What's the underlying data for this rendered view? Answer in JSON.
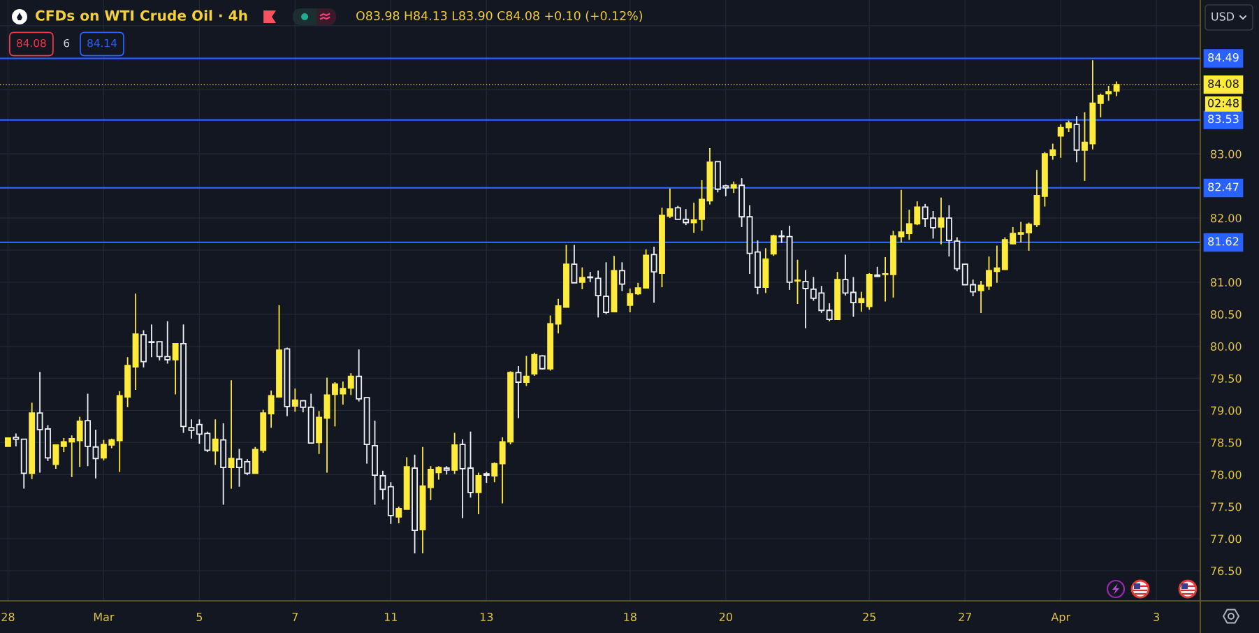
{
  "chart_data": {
    "type": "candlestick",
    "title": "CFDs on WTI Crude Oil · 4h",
    "subtitle": "O83.98 H84.13 L83.90 C84.08 +0.10 (+0.12%)",
    "ylabel": "USD",
    "annotations": [
      "84.08",
      "6",
      "84.14",
      "02:48"
    ],
    "categories": [
      "28",
      null,
      null,
      null,
      null,
      null,
      null,
      null,
      null,
      null,
      null,
      null,
      "Mar",
      null,
      null,
      null,
      null,
      null,
      null,
      null,
      null,
      null,
      null,
      null,
      "5",
      null,
      null,
      null,
      null,
      null,
      null,
      null,
      null,
      null,
      null,
      null,
      "7",
      null,
      null,
      null,
      null,
      null,
      null,
      null,
      null,
      null,
      null,
      null,
      "11",
      null,
      null,
      null,
      null,
      null,
      null,
      null,
      null,
      null,
      null,
      null,
      "13",
      null,
      null,
      null,
      null,
      null,
      null,
      null,
      null,
      null,
      null,
      null,
      null,
      null,
      null,
      null,
      null,
      null,
      "18",
      null,
      null,
      null,
      null,
      null,
      null,
      null,
      null,
      null,
      null,
      null,
      "20",
      null,
      null,
      null,
      null,
      null,
      null,
      null,
      null,
      null,
      null,
      null,
      null,
      null,
      null,
      null,
      null,
      null,
      "25",
      null,
      null,
      null,
      null,
      null,
      null,
      null,
      null,
      null,
      null,
      null,
      "27",
      null,
      null,
      null,
      null,
      null,
      null,
      null,
      null,
      null,
      null,
      null,
      "Apr",
      null,
      null,
      null,
      null,
      null,
      null,
      null,
      null,
      null,
      null,
      null,
      "3",
      null,
      null,
      null,
      null,
      null
    ],
    "ohlc": [
      [
        78.44,
        78.58,
        78.44,
        78.57
      ],
      [
        78.58,
        78.64,
        78.44,
        78.55
      ],
      [
        78.55,
        78.55,
        77.78,
        78.02
      ],
      [
        78.02,
        79.12,
        77.93,
        78.96
      ],
      [
        78.96,
        79.6,
        78.03,
        78.7
      ],
      [
        78.71,
        78.77,
        78.21,
        78.26
      ],
      [
        78.16,
        78.47,
        78.09,
        78.46
      ],
      [
        78.44,
        78.57,
        78.35,
        78.51
      ],
      [
        78.51,
        78.61,
        77.96,
        78.56
      ],
      [
        78.53,
        78.9,
        78.12,
        78.83
      ],
      [
        78.84,
        79.26,
        78.13,
        78.44
      ],
      [
        78.43,
        78.7,
        77.94,
        78.25
      ],
      [
        78.26,
        78.54,
        78.22,
        78.47
      ],
      [
        78.46,
        78.56,
        78.41,
        78.54
      ],
      [
        78.53,
        79.3,
        78.04,
        79.23
      ],
      [
        79.21,
        79.83,
        79.05,
        79.7
      ],
      [
        79.68,
        80.82,
        79.32,
        80.19
      ],
      [
        80.18,
        80.25,
        79.67,
        79.76
      ],
      [
        80.07,
        80.34,
        79.83,
        80.06
      ],
      [
        80.07,
        80.07,
        79.78,
        79.84
      ],
      [
        79.84,
        80.39,
        79.73,
        79.79
      ],
      [
        79.79,
        80.04,
        79.25,
        80.04
      ],
      [
        80.04,
        80.34,
        78.65,
        78.75
      ],
      [
        78.73,
        78.86,
        78.56,
        78.69
      ],
      [
        78.78,
        78.86,
        78.48,
        78.63
      ],
      [
        78.64,
        78.67,
        78.35,
        78.38
      ],
      [
        78.37,
        78.86,
        78.15,
        78.55
      ],
      [
        78.54,
        78.8,
        77.53,
        78.11
      ],
      [
        78.11,
        79.47,
        77.78,
        78.25
      ],
      [
        78.24,
        78.4,
        77.81,
        78.11
      ],
      [
        78.2,
        78.24,
        77.99,
        78.02
      ],
      [
        78.02,
        78.43,
        78.02,
        78.39
      ],
      [
        78.38,
        79.01,
        78.34,
        78.96
      ],
      [
        78.95,
        79.31,
        78.73,
        79.23
      ],
      [
        79.21,
        80.64,
        79.21,
        79.94
      ],
      [
        79.96,
        79.98,
        78.91,
        79.06
      ],
      [
        79.07,
        79.34,
        78.98,
        79.16
      ],
      [
        79.15,
        79.16,
        78.97,
        79.05
      ],
      [
        79.05,
        79.26,
        78.48,
        78.49
      ],
      [
        78.5,
        78.99,
        78.32,
        78.89
      ],
      [
        78.88,
        79.51,
        78.03,
        79.24
      ],
      [
        79.25,
        79.44,
        78.75,
        79.41
      ],
      [
        79.26,
        79.45,
        79.09,
        79.34
      ],
      [
        79.35,
        79.58,
        79.24,
        79.53
      ],
      [
        79.53,
        79.95,
        79.14,
        79.18
      ],
      [
        79.2,
        79.2,
        78.17,
        78.47
      ],
      [
        78.45,
        78.84,
        77.53,
        77.99
      ],
      [
        77.98,
        78.06,
        77.61,
        77.77
      ],
      [
        77.81,
        77.88,
        77.23,
        77.36
      ],
      [
        77.34,
        77.5,
        77.24,
        77.47
      ],
      [
        77.46,
        78.27,
        77.46,
        78.12
      ],
      [
        78.1,
        78.31,
        76.77,
        77.13
      ],
      [
        77.14,
        78.43,
        76.77,
        77.82
      ],
      [
        77.8,
        78.13,
        77.6,
        78.08
      ],
      [
        78.03,
        78.13,
        77.92,
        78.11
      ],
      [
        78.1,
        78.13,
        78.0,
        78.07
      ],
      [
        78.07,
        78.65,
        78.01,
        78.46
      ],
      [
        78.47,
        78.55,
        77.32,
        78.09
      ],
      [
        78.1,
        78.67,
        77.64,
        77.72
      ],
      [
        77.72,
        78.03,
        77.38,
        77.98
      ],
      [
        78.01,
        78.04,
        77.87,
        77.99
      ],
      [
        77.98,
        78.19,
        77.88,
        78.17
      ],
      [
        78.17,
        78.58,
        77.55,
        78.51
      ],
      [
        78.51,
        79.61,
        78.47,
        79.59
      ],
      [
        79.59,
        79.69,
        78.88,
        79.44
      ],
      [
        79.44,
        79.85,
        79.38,
        79.53
      ],
      [
        79.57,
        79.9,
        79.54,
        79.87
      ],
      [
        79.85,
        79.86,
        79.64,
        79.65
      ],
      [
        79.65,
        80.48,
        79.62,
        80.35
      ],
      [
        80.35,
        80.74,
        80.2,
        80.63
      ],
      [
        80.61,
        81.58,
        80.61,
        81.28
      ],
      [
        81.28,
        81.58,
        80.99,
        80.99
      ],
      [
        81.0,
        81.23,
        80.89,
        81.07
      ],
      [
        81.08,
        81.16,
        81.0,
        81.07
      ],
      [
        81.06,
        81.18,
        80.45,
        80.79
      ],
      [
        80.78,
        81.31,
        80.5,
        80.53
      ],
      [
        80.54,
        81.41,
        80.54,
        81.18
      ],
      [
        81.18,
        81.31,
        80.86,
        80.97
      ],
      [
        80.64,
        80.9,
        80.53,
        80.82
      ],
      [
        80.82,
        80.99,
        80.8,
        80.91
      ],
      [
        80.91,
        81.51,
        80.91,
        81.42
      ],
      [
        81.43,
        81.55,
        80.68,
        81.16
      ],
      [
        81.14,
        82.16,
        80.92,
        82.04
      ],
      [
        82.03,
        82.46,
        82.0,
        82.14
      ],
      [
        82.16,
        82.19,
        81.98,
        81.98
      ],
      [
        81.98,
        82.14,
        81.89,
        81.93
      ],
      [
        81.93,
        82.24,
        81.77,
        81.97
      ],
      [
        81.98,
        82.59,
        81.8,
        82.29
      ],
      [
        82.27,
        83.09,
        82.21,
        82.87
      ],
      [
        82.88,
        82.88,
        82.4,
        82.45
      ],
      [
        82.5,
        82.52,
        82.34,
        82.47
      ],
      [
        82.47,
        82.57,
        82.39,
        82.52
      ],
      [
        82.51,
        82.62,
        81.86,
        82.02
      ],
      [
        82.02,
        82.2,
        81.13,
        81.45
      ],
      [
        81.47,
        81.65,
        80.81,
        80.92
      ],
      [
        80.92,
        81.53,
        80.83,
        81.36
      ],
      [
        81.44,
        81.74,
        81.41,
        81.72
      ],
      [
        81.72,
        81.81,
        81.61,
        81.71
      ],
      [
        81.71,
        81.88,
        80.88,
        81.0
      ],
      [
        81.02,
        81.35,
        80.66,
        81.03
      ],
      [
        81.01,
        81.19,
        80.28,
        80.9
      ],
      [
        80.89,
        81.08,
        80.71,
        80.75
      ],
      [
        80.83,
        80.94,
        80.52,
        80.56
      ],
      [
        80.56,
        80.67,
        80.39,
        80.42
      ],
      [
        80.42,
        81.16,
        80.42,
        81.04
      ],
      [
        81.04,
        81.43,
        80.79,
        80.83
      ],
      [
        80.84,
        81.08,
        80.46,
        80.68
      ],
      [
        80.68,
        80.85,
        80.54,
        80.74
      ],
      [
        80.62,
        81.14,
        80.57,
        81.12
      ],
      [
        81.11,
        81.24,
        81.08,
        81.09
      ],
      [
        81.12,
        81.39,
        80.7,
        81.13
      ],
      [
        81.12,
        81.8,
        80.76,
        81.72
      ],
      [
        81.71,
        82.44,
        81.62,
        81.78
      ],
      [
        81.76,
        82.13,
        81.66,
        81.91
      ],
      [
        81.91,
        82.26,
        81.89,
        82.17
      ],
      [
        82.17,
        82.22,
        81.86,
        81.99
      ],
      [
        82.0,
        82.11,
        81.68,
        81.85
      ],
      [
        81.86,
        82.32,
        81.59,
        82.0
      ],
      [
        82.0,
        82.2,
        81.4,
        81.65
      ],
      [
        81.64,
        81.7,
        81.17,
        81.21
      ],
      [
        81.28,
        81.28,
        80.96,
        80.96
      ],
      [
        80.96,
        81.04,
        80.78,
        80.85
      ],
      [
        80.87,
        81.02,
        80.52,
        80.95
      ],
      [
        80.94,
        81.4,
        80.88,
        81.18
      ],
      [
        81.17,
        81.57,
        80.99,
        81.22
      ],
      [
        81.2,
        81.7,
        81.2,
        81.66
      ],
      [
        81.6,
        81.86,
        81.59,
        81.76
      ],
      [
        81.75,
        81.94,
        81.62,
        81.77
      ],
      [
        81.77,
        81.93,
        81.49,
        81.9
      ],
      [
        81.9,
        82.75,
        81.86,
        82.35
      ],
      [
        82.34,
        83.03,
        82.18,
        83.0
      ],
      [
        82.98,
        83.16,
        82.91,
        83.06
      ],
      [
        83.28,
        83.46,
        82.94,
        83.41
      ],
      [
        83.41,
        83.52,
        83.34,
        83.48
      ],
      [
        83.46,
        83.59,
        82.87,
        83.06
      ],
      [
        83.06,
        83.65,
        82.58,
        83.18
      ],
      [
        83.16,
        84.46,
        83.07,
        83.79
      ],
      [
        83.79,
        83.94,
        83.57,
        83.91
      ],
      [
        83.94,
        84.06,
        83.83,
        83.97
      ],
      [
        83.98,
        84.13,
        83.9,
        84.08
      ],
      null,
      null,
      null,
      null,
      null,
      null,
      null,
      null,
      null,
      null
    ],
    "ylim": [
      76.03,
      85.4
    ],
    "yticks": [
      {
        "value": 76.5,
        "label": "76.50"
      },
      {
        "value": 77.0,
        "label": "77.00"
      },
      {
        "value": 77.5,
        "label": "77.50"
      },
      {
        "value": 78.0,
        "label": "78.00"
      },
      {
        "value": 78.5,
        "label": "78.50"
      },
      {
        "value": 79.0,
        "label": "79.00"
      },
      {
        "value": 79.5,
        "label": "79.50"
      },
      {
        "value": 80.0,
        "label": "80.00"
      },
      {
        "value": 80.5,
        "label": "80.50"
      },
      {
        "value": 81.0,
        "label": "81.00"
      },
      {
        "value": 81.5,
        "label": null
      },
      {
        "value": 82.0,
        "label": "82.00"
      },
      {
        "value": 83.0,
        "label": "83.00"
      },
      {
        "value": 84.0,
        "label": null
      },
      {
        "value": 85.0,
        "label": null
      }
    ],
    "grid": true,
    "ref_lines": [
      {
        "axis": "y",
        "value": 84.49,
        "label": "84.49",
        "color": "#2962ff",
        "line_style": "solid"
      },
      {
        "axis": "y",
        "value": 83.53,
        "label": "83.53",
        "color": "#2962ff",
        "line_style": "solid"
      },
      {
        "axis": "y",
        "value": 82.47,
        "label": "82.47",
        "color": "#2962ff",
        "line_style": "solid"
      },
      {
        "axis": "y",
        "value": 81.62,
        "label": "81.62",
        "color": "#2962ff",
        "line_style": "solid"
      },
      {
        "axis": "y",
        "value": 84.08,
        "label": "84.08",
        "color": "#ffeb3b",
        "line_style": "dotted"
      }
    ]
  }
}
